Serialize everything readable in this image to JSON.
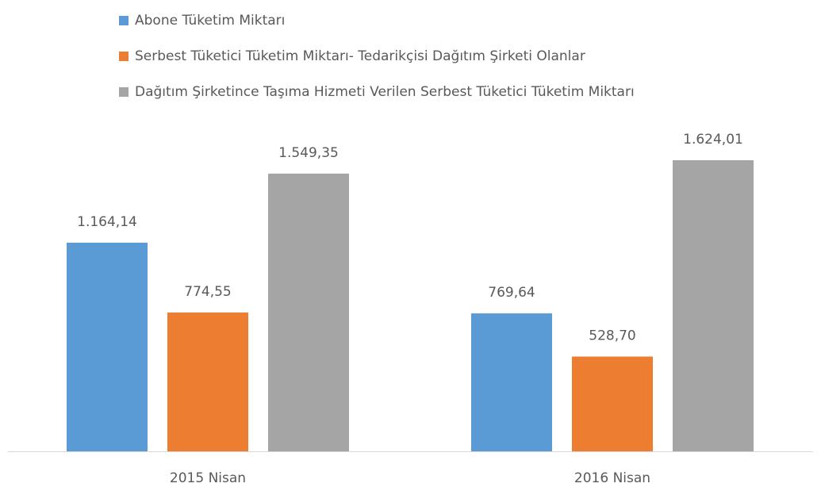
{
  "chart_data": {
    "type": "bar",
    "categories": [
      "2015 Nisan",
      "2016 Nisan"
    ],
    "series": [
      {
        "name": "Abone Tüketim Miktarı",
        "color": "#5b9bd5",
        "values": [
          1164.14,
          769.64
        ],
        "value_labels": [
          "1.164,14",
          "769,64"
        ]
      },
      {
        "name": "Serbest Tüketici Tüketim Miktarı- Tedarikçisi Dağıtım Şirketi Olanlar",
        "color": "#ed7d31",
        "values": [
          774.55,
          528.7
        ],
        "value_labels": [
          "774,55",
          "528,70"
        ]
      },
      {
        "name": "Dağıtım Şirketince Taşıma Hizmeti Verilen Serbest Tüketici Tüketim Miktarı",
        "color": "#a5a5a5",
        "values": [
          1549.35,
          1624.01
        ],
        "value_labels": [
          "1.549,35",
          "1.624,01"
        ]
      }
    ],
    "legend": "top-left"
  }
}
